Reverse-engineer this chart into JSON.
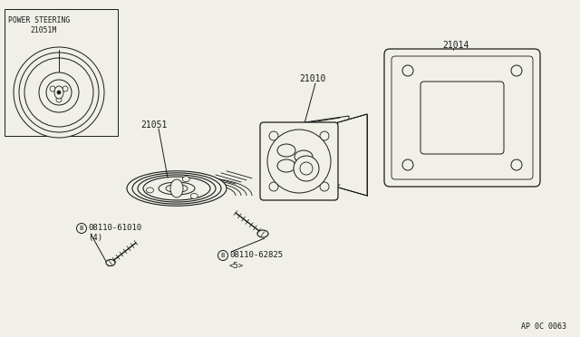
{
  "bg_color": "#f0efe8",
  "line_color": "#1a1a1a",
  "figure_code": "AP 0C 0063",
  "parts": {
    "power_steering_label": "POWER STEERING",
    "power_steering_part": "21051M",
    "part_21014": "21014",
    "part_21010": "21010",
    "part_21051": "21051",
    "bolt_b1_label": "08110-61010",
    "bolt_b1_qty": "(4)",
    "bolt_b2_label": "08110-62825",
    "bolt_b2_qty": "<5>"
  }
}
